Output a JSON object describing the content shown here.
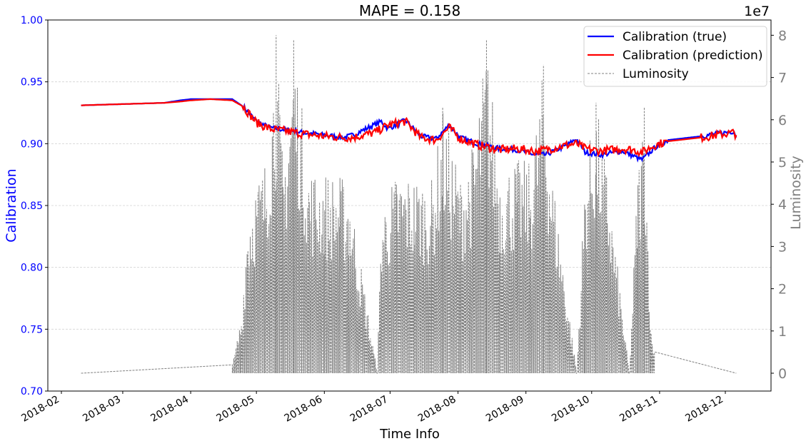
{
  "chart_data": {
    "type": "line",
    "title": "MAPE = 0.158",
    "xlabel": "Time Info",
    "ylabel": "Calibration",
    "ylabel_right": "Luminosity",
    "right_axis_offset": "1e7",
    "ylim": [
      0.7,
      1.0
    ],
    "ylim_right": [
      -0.4,
      8.3
    ],
    "y_ticks": [
      "0.70",
      "0.75",
      "0.80",
      "0.85",
      "0.90",
      "0.95",
      "1.00"
    ],
    "y_ticks_right": [
      "0",
      "1",
      "2",
      "3",
      "4",
      "5",
      "6",
      "7",
      "8"
    ],
    "x_ticks": [
      "2018-02",
      "2018-03",
      "2018-04",
      "2018-05",
      "2018-06",
      "2018-07",
      "2018-08",
      "2018-09",
      "2018-10",
      "2018-11",
      "2018-12"
    ],
    "grid": true,
    "legend_position": "upper right",
    "colors": {
      "true": "#0000ff",
      "prediction": "#ff0000",
      "luminosity": "#808080",
      "left_axis": "#0000ff",
      "right_axis": "#808080"
    },
    "series": [
      {
        "name": "Calibration (true)",
        "style": "solid",
        "x": [
          "2018-02-10",
          "2018-03-01",
          "2018-03-20",
          "2018-03-27",
          "2018-04-01",
          "2018-04-10",
          "2018-04-20",
          "2018-04-25",
          "2018-05-01",
          "2018-05-07",
          "2018-05-15",
          "2018-05-22",
          "2018-06-01",
          "2018-06-10",
          "2018-06-14",
          "2018-06-27",
          "2018-06-30",
          "2018-07-08",
          "2018-07-15",
          "2018-07-22",
          "2018-07-28",
          "2018-08-02",
          "2018-08-10",
          "2018-08-20",
          "2018-08-28",
          "2018-09-05",
          "2018-09-10",
          "2018-09-20",
          "2018-09-24",
          "2018-09-28",
          "2018-10-05",
          "2018-10-15",
          "2018-10-20",
          "2018-10-24",
          "2018-10-30",
          "2018-11-05",
          "2018-11-20",
          "2018-12-01",
          "2018-12-05",
          "2018-12-06"
        ],
        "values": [
          0.931,
          0.932,
          0.933,
          0.935,
          0.936,
          0.936,
          0.936,
          0.93,
          0.918,
          0.913,
          0.911,
          0.909,
          0.907,
          0.905,
          0.907,
          0.918,
          0.912,
          0.919,
          0.906,
          0.904,
          0.915,
          0.905,
          0.9,
          0.896,
          0.895,
          0.891,
          0.891,
          0.899,
          0.904,
          0.893,
          0.891,
          0.894,
          0.89,
          0.887,
          0.897,
          0.903,
          0.906,
          0.909,
          0.91,
          0.905
        ]
      },
      {
        "name": "Calibration (prediction)",
        "style": "solid",
        "x": [
          "2018-02-10",
          "2018-03-01",
          "2018-03-20",
          "2018-03-27",
          "2018-04-01",
          "2018-04-10",
          "2018-04-20",
          "2018-04-25",
          "2018-05-01",
          "2018-05-07",
          "2018-05-15",
          "2018-05-22",
          "2018-06-01",
          "2018-06-10",
          "2018-06-14",
          "2018-06-24",
          "2018-06-30",
          "2018-07-08",
          "2018-07-15",
          "2018-07-22",
          "2018-07-28",
          "2018-08-02",
          "2018-08-10",
          "2018-08-20",
          "2018-08-28",
          "2018-09-05",
          "2018-09-10",
          "2018-09-20",
          "2018-09-24",
          "2018-09-28",
          "2018-10-05",
          "2018-10-15",
          "2018-10-20",
          "2018-10-24",
          "2018-10-30",
          "2018-11-05",
          "2018-11-20",
          "2018-12-01",
          "2018-12-05",
          "2018-12-06"
        ],
        "values": [
          0.931,
          0.932,
          0.933,
          0.934,
          0.935,
          0.936,
          0.935,
          0.93,
          0.917,
          0.912,
          0.91,
          0.908,
          0.906,
          0.905,
          0.905,
          0.909,
          0.915,
          0.918,
          0.905,
          0.903,
          0.913,
          0.904,
          0.899,
          0.895,
          0.896,
          0.894,
          0.895,
          0.899,
          0.9,
          0.896,
          0.894,
          0.896,
          0.895,
          0.893,
          0.899,
          0.902,
          0.905,
          0.908,
          0.909,
          0.907
        ]
      },
      {
        "name": "Luminosity",
        "style": "dashed",
        "x": [
          "2018-02-10",
          "2018-04-20",
          "2018-04-24",
          "2018-04-27",
          "2018-04-30",
          "2018-05-05",
          "2018-05-10",
          "2018-05-13",
          "2018-05-18",
          "2018-05-25",
          "2018-06-01",
          "2018-06-08",
          "2018-06-12",
          "2018-06-25",
          "2018-06-27",
          "2018-07-04",
          "2018-07-12",
          "2018-07-20",
          "2018-07-25",
          "2018-08-02",
          "2018-08-08",
          "2018-08-14",
          "2018-08-20",
          "2018-08-28",
          "2018-09-03",
          "2018-09-09",
          "2018-09-12",
          "2018-09-24",
          "2018-09-28",
          "2018-10-03",
          "2018-10-08",
          "2018-10-18",
          "2018-10-22",
          "2018-10-25",
          "2018-10-28",
          "2018-10-30",
          "2018-12-06"
        ],
        "values": [
          0.0,
          0.2,
          1.4,
          4.0,
          4.5,
          5.1,
          8.0,
          5.0,
          7.9,
          4.9,
          4.8,
          4.7,
          4.6,
          0.0,
          4.0,
          4.8,
          4.7,
          4.6,
          6.3,
          4.7,
          5.5,
          7.9,
          4.9,
          5.1,
          5.0,
          7.3,
          5.2,
          0.0,
          5.0,
          6.4,
          4.8,
          0.0,
          5.0,
          6.3,
          1.0,
          0.5,
          0.0
        ]
      }
    ]
  },
  "legend": {
    "items": [
      {
        "label": "Calibration (true)"
      },
      {
        "label": "Calibration (prediction)"
      },
      {
        "label": "Luminosity"
      }
    ]
  }
}
